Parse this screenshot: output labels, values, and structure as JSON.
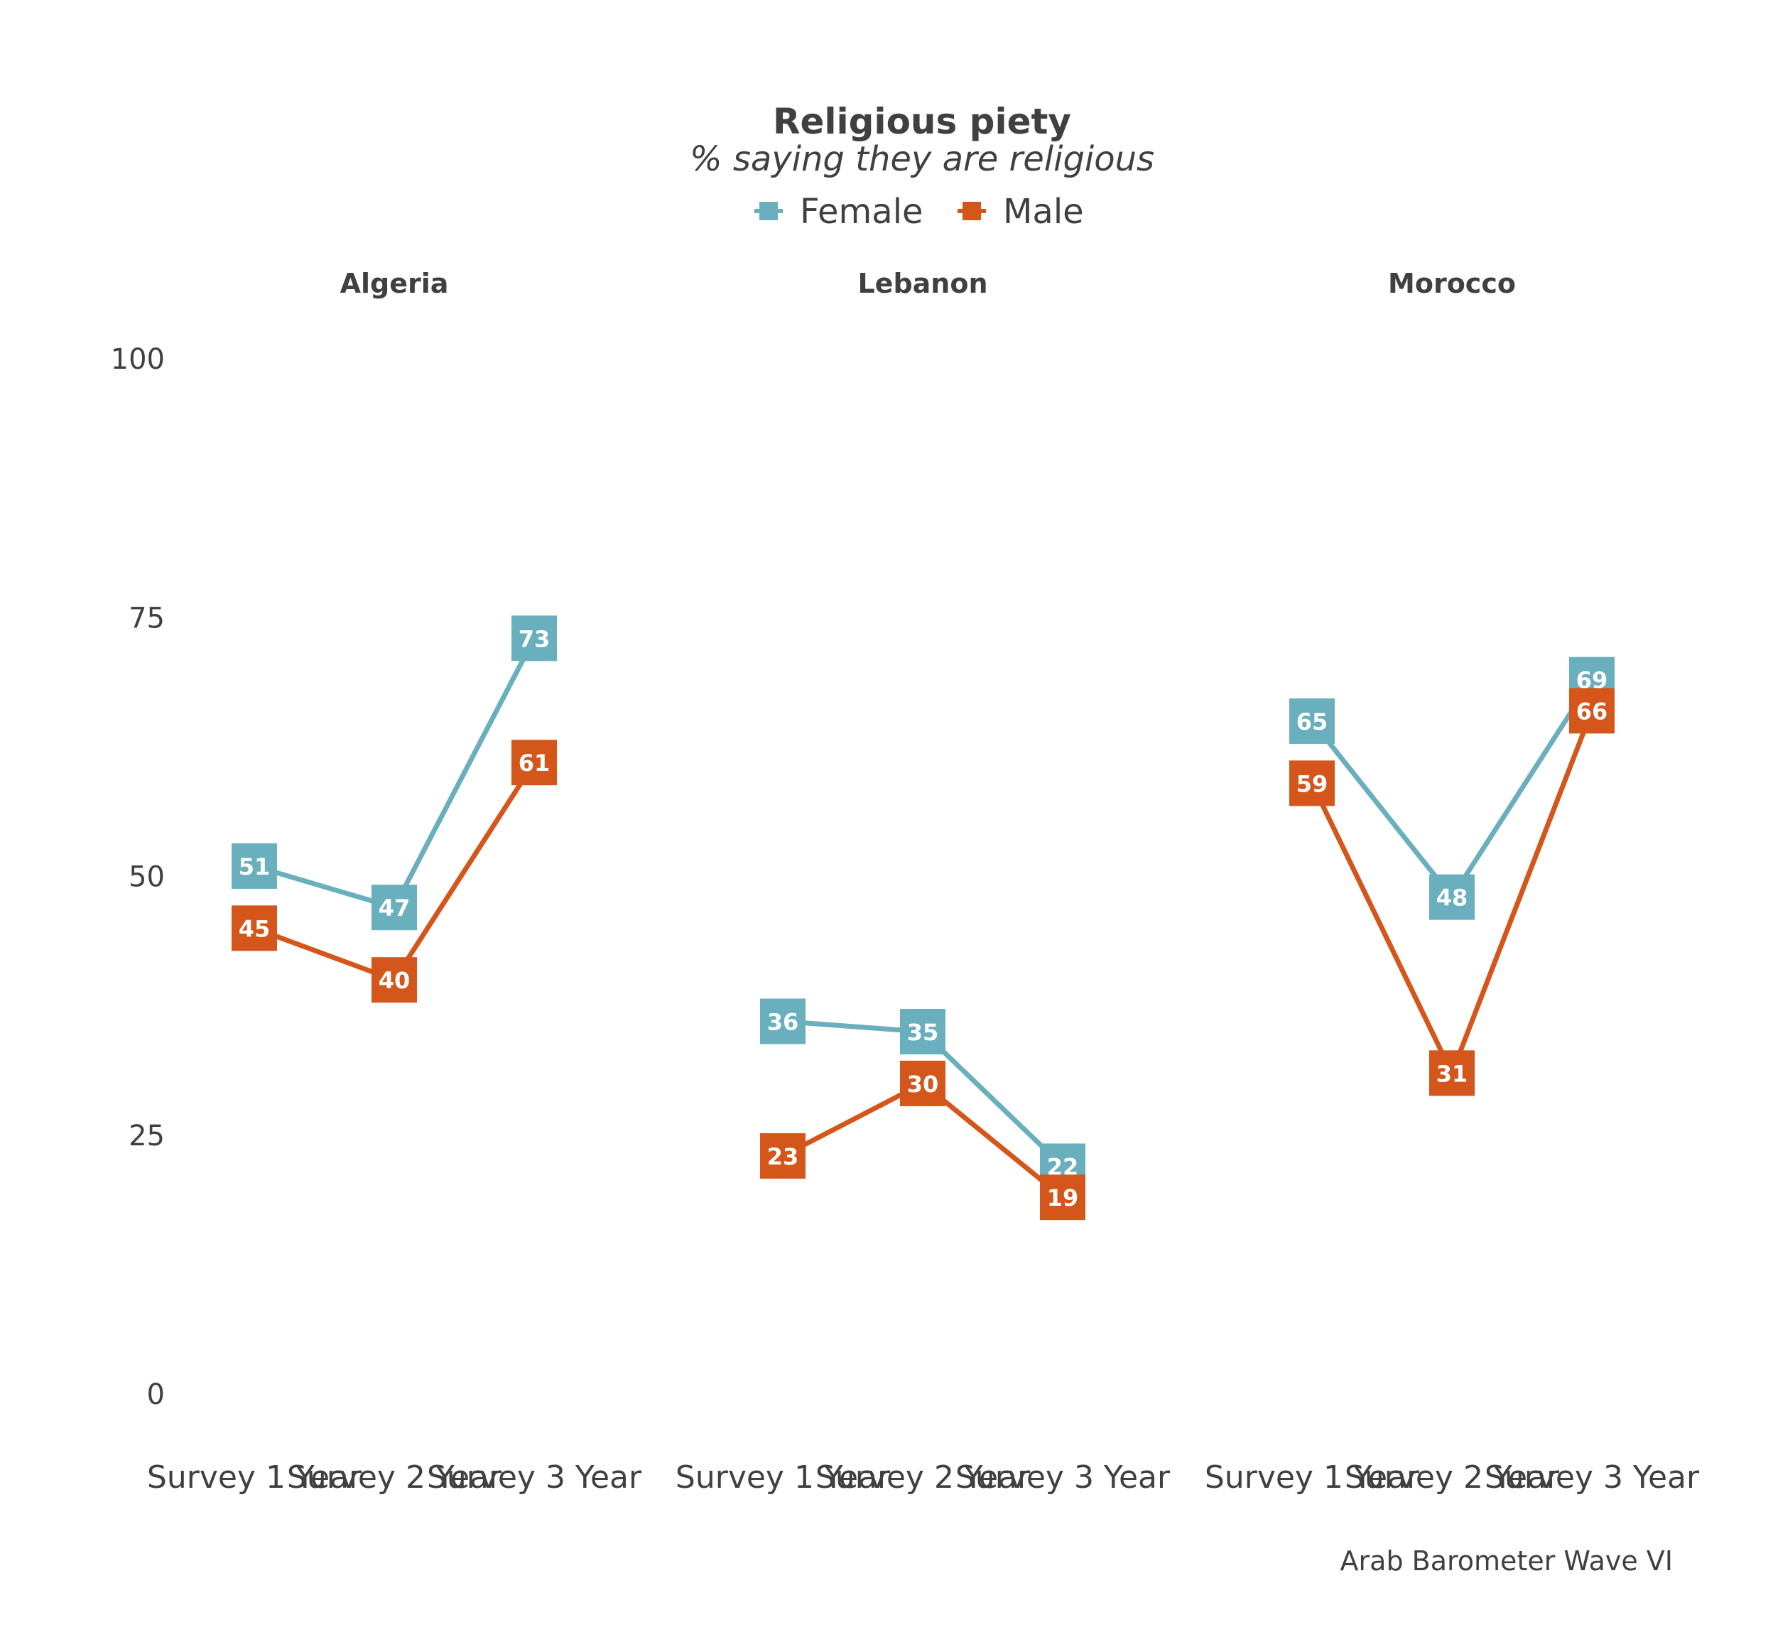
{
  "chart_data": {
    "type": "line",
    "title": "Religious piety",
    "subtitle": "% saying they are religious",
    "caption": "Arab Barometer Wave VI",
    "ylim": [
      0,
      100
    ],
    "yticks": [
      0,
      25,
      50,
      75,
      100
    ],
    "grid": false,
    "legend_position": "top",
    "categories": [
      "Survey 1 Year",
      "Survey 2 Year",
      "Survey 3 Year"
    ],
    "series_styles": [
      {
        "name": "Female",
        "color": "#6aafbd"
      },
      {
        "name": "Male",
        "color": "#d4561a"
      }
    ],
    "panels": [
      {
        "title": "Algeria",
        "series": [
          {
            "name": "Female",
            "values": [
              51,
              47,
              73
            ]
          },
          {
            "name": "Male",
            "values": [
              45,
              40,
              61
            ]
          }
        ]
      },
      {
        "title": "Lebanon",
        "series": [
          {
            "name": "Female",
            "values": [
              36,
              35,
              22
            ]
          },
          {
            "name": "Male",
            "values": [
              23,
              30,
              19
            ]
          }
        ]
      },
      {
        "title": "Morocco",
        "series": [
          {
            "name": "Female",
            "values": [
              65,
              48,
              69
            ]
          },
          {
            "name": "Male",
            "values": [
              59,
              31,
              66
            ]
          }
        ]
      }
    ]
  }
}
